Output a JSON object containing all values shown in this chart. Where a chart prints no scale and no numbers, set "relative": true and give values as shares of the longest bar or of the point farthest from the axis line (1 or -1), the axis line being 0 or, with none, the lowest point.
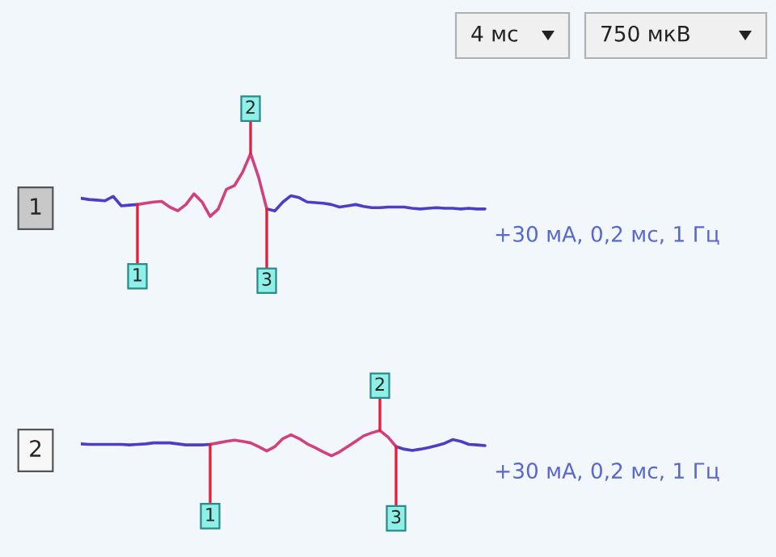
{
  "chart_data": [
    {
      "type": "line",
      "title": "1",
      "relative": true,
      "categories": [
        null,
        null,
        null,
        null,
        null,
        null,
        null,
        null,
        null,
        null,
        null,
        null,
        null,
        null,
        null,
        null,
        null,
        null,
        null,
        null,
        null,
        null,
        null,
        null,
        null,
        null,
        null,
        null,
        null,
        null,
        null,
        null,
        null,
        null,
        null,
        null,
        null,
        null,
        null,
        null,
        null,
        null,
        null,
        null,
        null,
        null,
        null,
        null,
        null,
        null,
        null
      ],
      "series": [
        {
          "color": "#4b3fc8",
          "values": [
            0.29,
            0.27,
            0.26,
            0.25,
            0.32,
            0.17,
            0.18,
            0.19,
            null,
            null,
            null,
            null,
            null,
            null,
            null,
            null,
            null,
            null,
            null,
            null,
            null,
            null,
            null,
            0.12,
            0.09,
            0.23,
            0.33,
            0.3,
            0.23,
            0.22,
            0.21,
            0.19,
            0.15,
            0.17,
            0.19,
            0.16,
            0.14,
            0.14,
            0.15,
            0.15,
            0.15,
            0.13,
            0.12,
            0.13,
            0.14,
            0.13,
            0.13,
            0.12,
            0.13,
            0.12,
            0.12
          ]
        },
        {
          "color": "#d2407e",
          "values": [
            null,
            null,
            null,
            null,
            null,
            null,
            null,
            0.19,
            0.21,
            0.23,
            0.24,
            0.15,
            0.09,
            0.19,
            0.36,
            0.23,
            0,
            0.12,
            0.43,
            0.49,
            0.7,
            1,
            0.62,
            0.12,
            null,
            null,
            null,
            null,
            null,
            null,
            null,
            null,
            null,
            null,
            null,
            null,
            null,
            null,
            null,
            null,
            null,
            null,
            null,
            null,
            null,
            null,
            null,
            null,
            null,
            null,
            null
          ]
        }
      ],
      "annotations": [
        "1",
        "2",
        "3",
        "+30 мА, 0,2 мс, 1 Гц",
        "4 мс",
        "750 мкВ"
      ]
    },
    {
      "type": "line",
      "title": "2",
      "relative": true,
      "categories": [
        null,
        null,
        null,
        null,
        null,
        null,
        null,
        null,
        null,
        null,
        null,
        null,
        null,
        null,
        null,
        null,
        null,
        null,
        null,
        null,
        null,
        null,
        null,
        null,
        null,
        null,
        null,
        null,
        null,
        null,
        null,
        null,
        null,
        null,
        null,
        null,
        null,
        null,
        null,
        null,
        null,
        null,
        null,
        null,
        null,
        null,
        null,
        null,
        null,
        null,
        null
      ],
      "series": [
        {
          "color": "#4b3fc8",
          "values": [
            0.47,
            0.45,
            0.45,
            0.45,
            0.45,
            0.45,
            0.43,
            0.45,
            0.47,
            0.51,
            0.51,
            0.51,
            0.47,
            0.43,
            0.43,
            0.43,
            0.45,
            null,
            null,
            null,
            null,
            null,
            null,
            null,
            null,
            null,
            null,
            null,
            null,
            null,
            null,
            null,
            null,
            null,
            null,
            null,
            null,
            null,
            null,
            0.36,
            0.26,
            0.21,
            0.26,
            0.32,
            0.4,
            0.49,
            0.64,
            0.57,
            0.45,
            0.43,
            0.4
          ]
        },
        {
          "color": "#d2407e",
          "values": [
            null,
            null,
            null,
            null,
            null,
            null,
            null,
            null,
            null,
            null,
            null,
            null,
            null,
            null,
            null,
            null,
            0.45,
            0.51,
            0.57,
            0.62,
            0.57,
            0.51,
            0.36,
            0.19,
            0.36,
            0.68,
            0.83,
            0.68,
            0.47,
            0.32,
            0.15,
            0,
            0.15,
            0.36,
            0.57,
            0.79,
            0.91,
            1,
            0.74,
            0.36,
            null,
            null,
            null,
            null,
            null,
            null,
            null,
            null,
            null,
            null,
            null
          ]
        }
      ],
      "annotations": [
        "1",
        "2",
        "3",
        "+30 мА, 0,2 мс, 1 Гц"
      ]
    }
  ]
}
